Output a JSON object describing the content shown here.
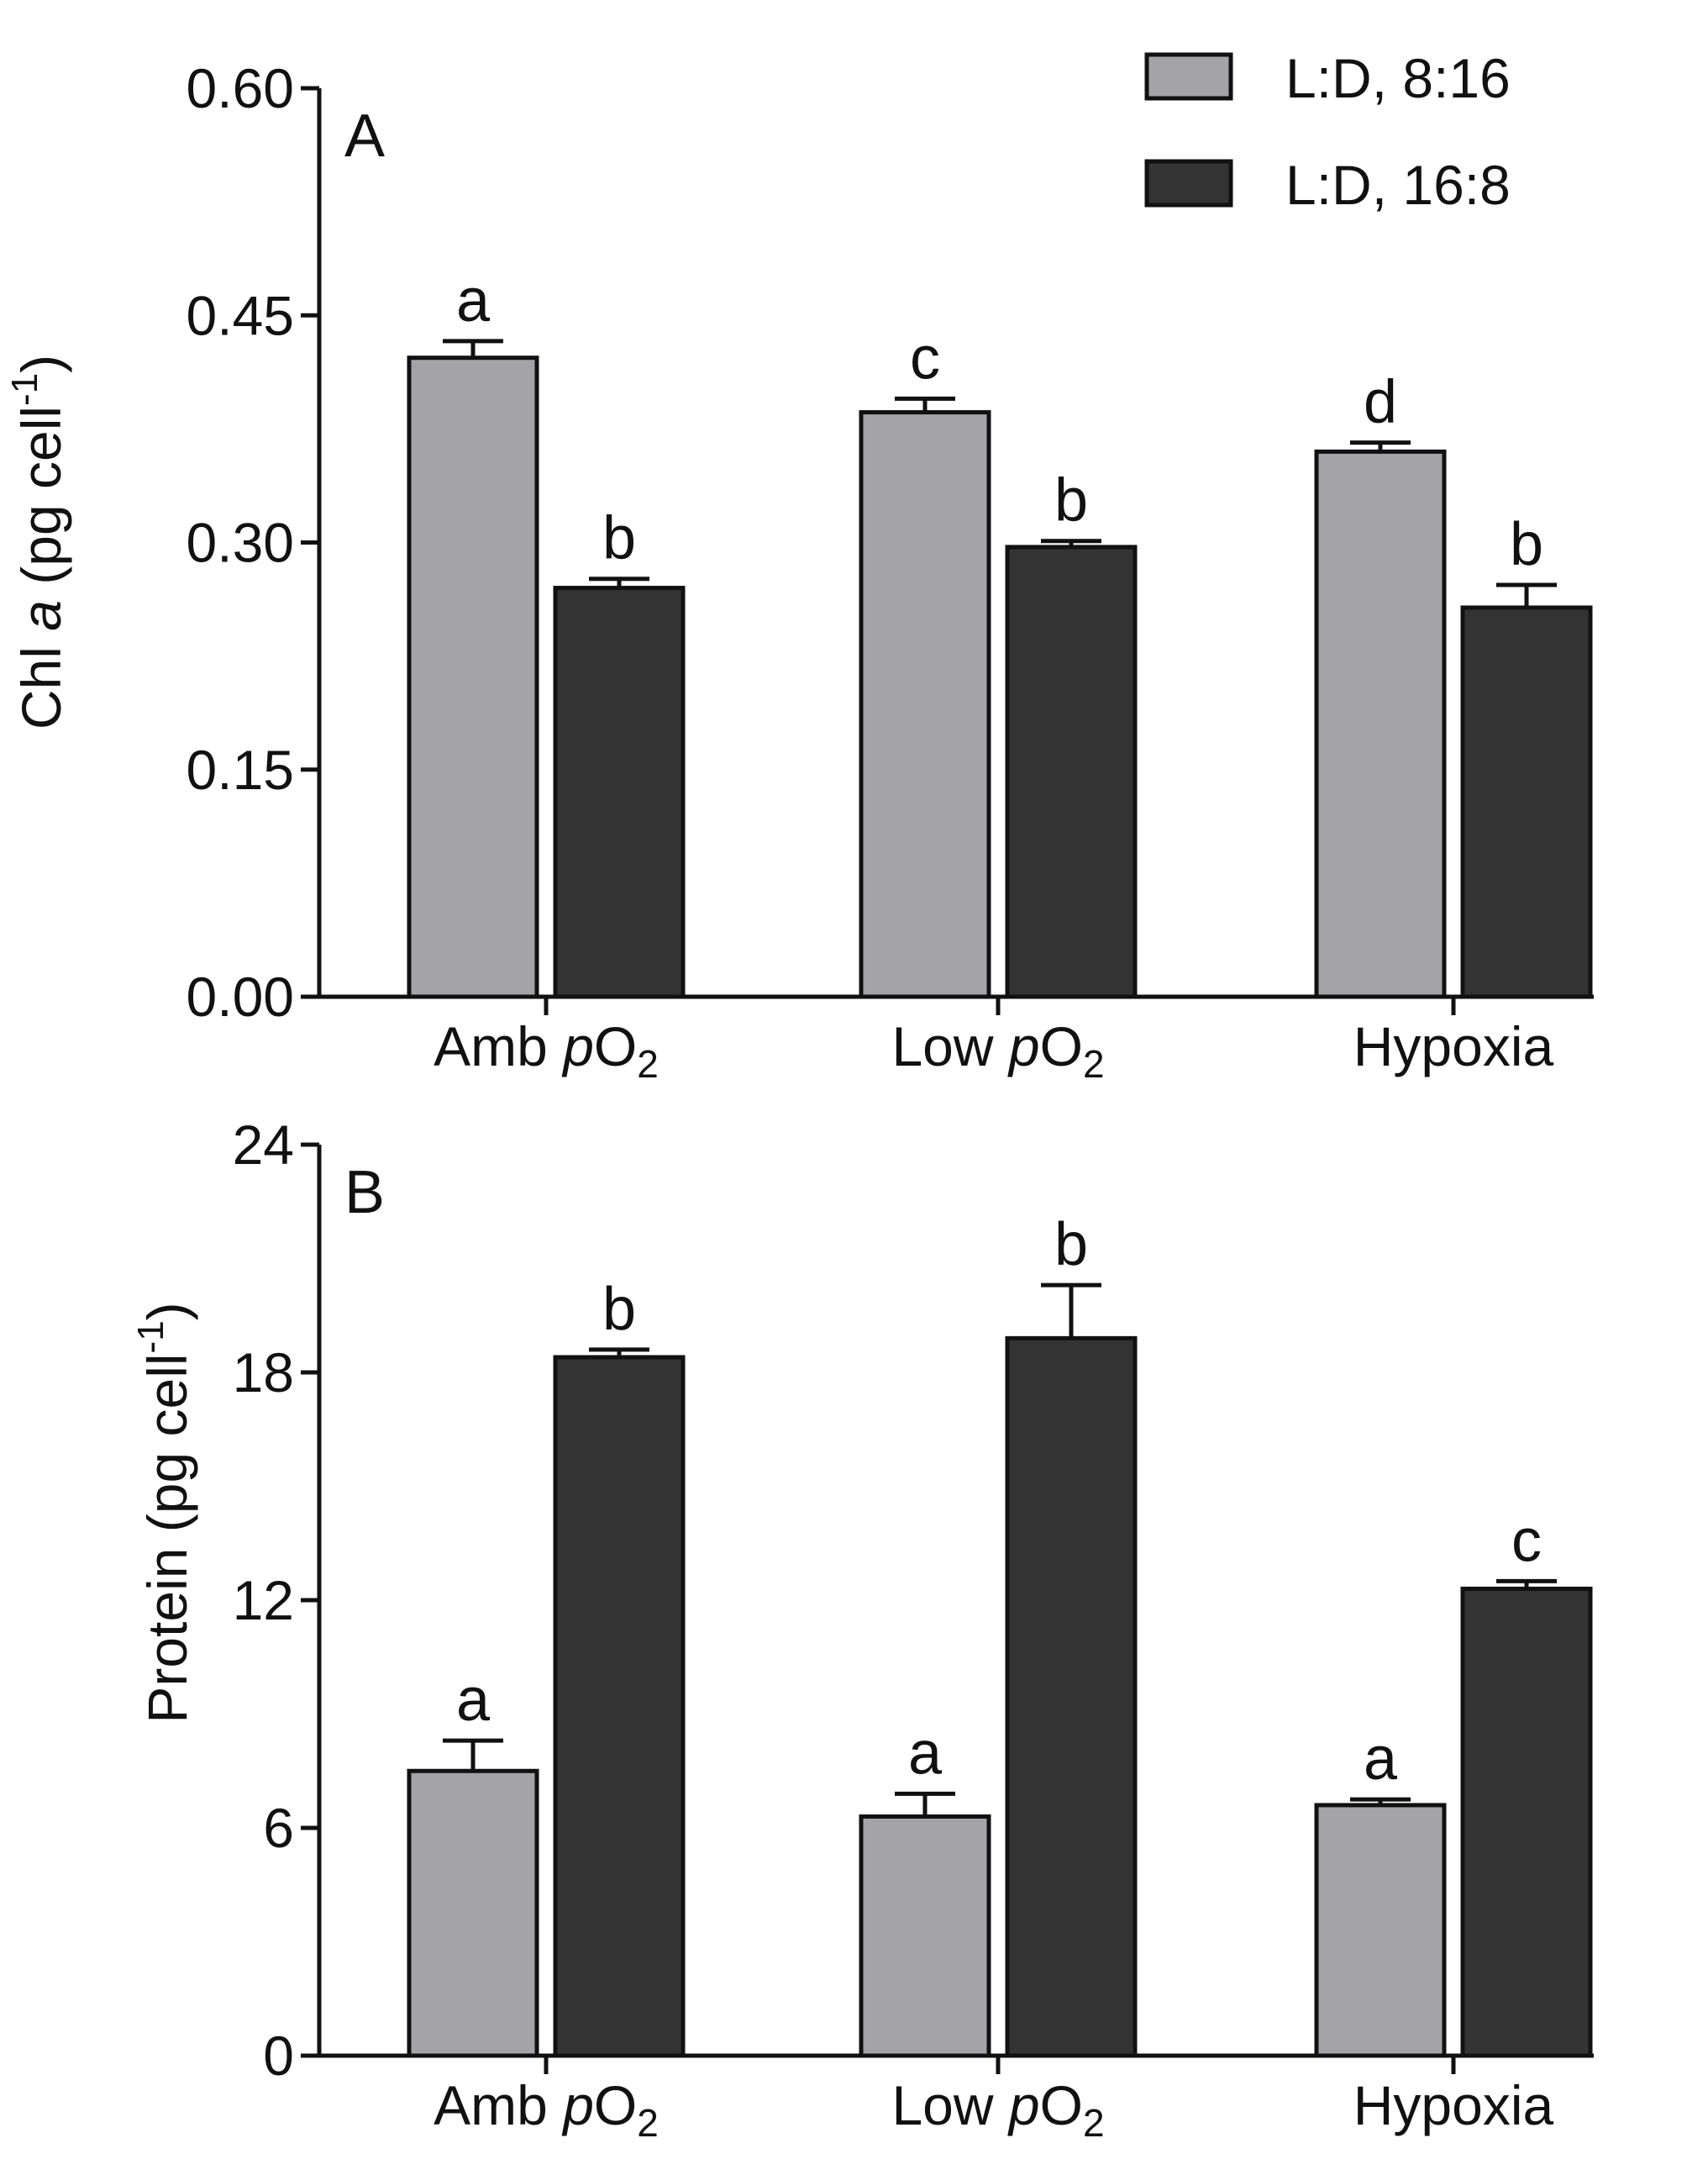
{
  "legend": {
    "series": [
      {
        "name": "L:D, 8:16",
        "color": "#a4a3a8"
      },
      {
        "name": "L:D, 16:8",
        "color": "#333333"
      }
    ]
  },
  "chart_data": [
    {
      "type": "bar",
      "panel": "A",
      "title": "",
      "xlabel": "",
      "ylabel": "Chl a (pg cell-1)",
      "ylabel_parts": {
        "pre": "Chl ",
        "italic": "a",
        "mid": " (pg cell",
        "sup": "-1",
        "post": ")"
      },
      "categories": [
        {
          "pre": "Amb ",
          "italic": "p",
          "main": "O",
          "sub": "2"
        },
        {
          "pre": "Low ",
          "italic": "p",
          "main": "O",
          "sub": "2"
        },
        {
          "pre": "Hypoxia",
          "italic": "",
          "main": "",
          "sub": ""
        }
      ],
      "ylim": [
        0,
        0.6
      ],
      "yticks": [
        "0.00",
        "0.15",
        "0.30",
        "0.45",
        "0.60"
      ],
      "grid": false,
      "legend_position": "top-right",
      "series": [
        {
          "name": "L:D, 8:16",
          "values": [
            0.422,
            0.386,
            0.36
          ],
          "errors": [
            0.011,
            0.009,
            0.006
          ],
          "letters": [
            "a",
            "c",
            "d"
          ]
        },
        {
          "name": "L:D, 16:8",
          "values": [
            0.27,
            0.297,
            0.257
          ],
          "errors": [
            0.006,
            0.004,
            0.015
          ],
          "letters": [
            "b",
            "b",
            "b"
          ]
        }
      ]
    },
    {
      "type": "bar",
      "panel": "B",
      "title": "",
      "xlabel": "",
      "ylabel": "Protein (pg cell-1)",
      "ylabel_parts": {
        "pre": "Protein (pg cell",
        "italic": "",
        "mid": "",
        "sup": "-1",
        "post": ")"
      },
      "categories": [
        {
          "pre": "Amb ",
          "italic": "p",
          "main": "O",
          "sub": "2"
        },
        {
          "pre": "Low ",
          "italic": "p",
          "main": "O",
          "sub": "2"
        },
        {
          "pre": "Hypoxia",
          "italic": "",
          "main": "",
          "sub": ""
        }
      ],
      "ylim": [
        0,
        24
      ],
      "yticks": [
        "0",
        "6",
        "12",
        "18",
        "24"
      ],
      "grid": false,
      "series": [
        {
          "name": "L:D, 8:16",
          "values": [
            7.5,
            6.3,
            6.6
          ],
          "errors": [
            0.8,
            0.6,
            0.15
          ],
          "letters": [
            "a",
            "a",
            "a"
          ]
        },
        {
          "name": "L:D, 16:8",
          "values": [
            18.4,
            18.9,
            12.3
          ],
          "errors": [
            0.2,
            1.4,
            0.2
          ],
          "letters": [
            "b",
            "b",
            "c"
          ]
        }
      ]
    }
  ]
}
